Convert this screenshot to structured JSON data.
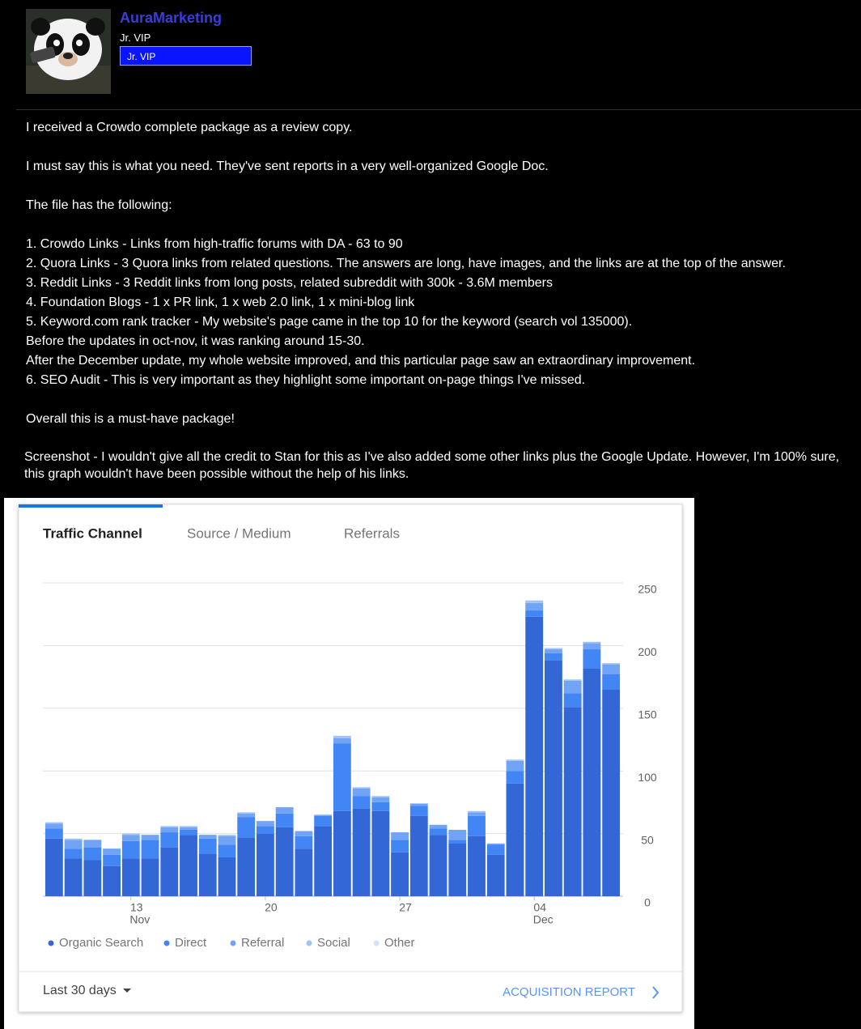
{
  "user": {
    "name": "AuraMarketing",
    "title": "Jr. VIP",
    "badge": "Jr. VIP"
  },
  "post": {
    "blocks": [
      [
        "I received a Crowdo complete package as a review copy."
      ],
      [
        "I must say this is what you need. They've sent reports in a very well-organized Google Doc."
      ],
      [
        "The file has the following:"
      ],
      [
        "1. Crowdo Links - Links from high-traffic forums with DA - 63 to 90",
        "2. Quora Links - 3 Quora links from related questions. The answers are long, have images, and the links are at the top of the answer.",
        "3. Reddit Links - 3 Reddit links from long posts, related subreddit with 300k - 3.6M members",
        "4. Foundation Blogs - 1 x PR link, 1 x web 2.0 link, 1 x mini-blog link",
        "5. Keyword.com rank tracker - My website's page came in the top 10 for the keyword (search vol 135000).",
        "Before the updates in oct-nov, it was ranking around 15-30.",
        "After the December update, my whole website improved, and this particular page saw an extraordinary improvement.",
        "6. SEO Audit - This is very important as they highlight some important on-page things I've missed."
      ],
      [
        "Overall this is a must-have package!"
      ],
      [
        "Screenshot - I wouldn't give all the credit to Stan for this as I've also added some other links plus the Google Update. However, I'm 100% sure, this graph wouldn't have been possible without the help of his links."
      ]
    ]
  },
  "tabs": [
    "Traffic Channel",
    "Source / Medium",
    "Referrals"
  ],
  "chart_data": {
    "type": "stacked_bar",
    "categories": [
      null,
      null,
      null,
      null,
      "13",
      null,
      null,
      null,
      null,
      null,
      null,
      "20",
      null,
      null,
      null,
      null,
      null,
      null,
      "27",
      null,
      null,
      null,
      null,
      null,
      null,
      "04",
      null,
      null,
      null,
      null
    ],
    "x_sublabels": [
      null,
      null,
      null,
      null,
      "Nov",
      null,
      null,
      null,
      null,
      null,
      null,
      null,
      null,
      null,
      null,
      null,
      null,
      null,
      null,
      null,
      null,
      null,
      null,
      null,
      null,
      "Dec",
      null,
      null,
      null,
      null
    ],
    "series": [
      {
        "name": "Organic Search",
        "color": "#3367d6",
        "values": [
          46,
          30,
          29,
          24,
          30,
          30,
          39,
          49,
          34,
          31,
          47,
          50,
          55,
          38,
          56,
          68,
          70,
          68,
          35,
          64,
          49,
          42,
          48,
          33,
          90,
          223,
          188,
          151,
          182,
          165
        ]
      },
      {
        "name": "Direct",
        "color": "#4285f4",
        "values": [
          8,
          8,
          10,
          9,
          14,
          15,
          12,
          4,
          12,
          10,
          16,
          6,
          11,
          10,
          8,
          54,
          10,
          7,
          10,
          8,
          5,
          3,
          16,
          8,
          10,
          5,
          6,
          11,
          15,
          12
        ]
      },
      {
        "name": "Referral",
        "color": "#72a4f6",
        "values": [
          4,
          7,
          6,
          5,
          5,
          4,
          4,
          2,
          3,
          7,
          3,
          4,
          5,
          4,
          1,
          4,
          6,
          4,
          6,
          2,
          3,
          8,
          3,
          1,
          8,
          6,
          3,
          10,
          5,
          8
        ]
      },
      {
        "name": "Social",
        "color": "#a1c2fa",
        "values": [
          1,
          1,
          0,
          0,
          1,
          0,
          1,
          1,
          0,
          1,
          1,
          0,
          0,
          0,
          0,
          2,
          1,
          1,
          0,
          0,
          0,
          0,
          1,
          0,
          1,
          2,
          1,
          1,
          1,
          1
        ]
      },
      {
        "name": "Other",
        "color": "#d2e3fc",
        "values": [
          0,
          0,
          0,
          0,
          0,
          0,
          0,
          0,
          0,
          0,
          0,
          0,
          0,
          0,
          0,
          0,
          0,
          0,
          0,
          0,
          0,
          0,
          0,
          0,
          0,
          0,
          0,
          0,
          0,
          0
        ]
      }
    ],
    "ylim": [
      0,
      250
    ],
    "yticks": [
      0,
      50,
      100,
      150,
      200,
      250
    ],
    "grid": true
  },
  "footer": {
    "range": "Last 30 days",
    "link": "ACQUISITION REPORT"
  }
}
